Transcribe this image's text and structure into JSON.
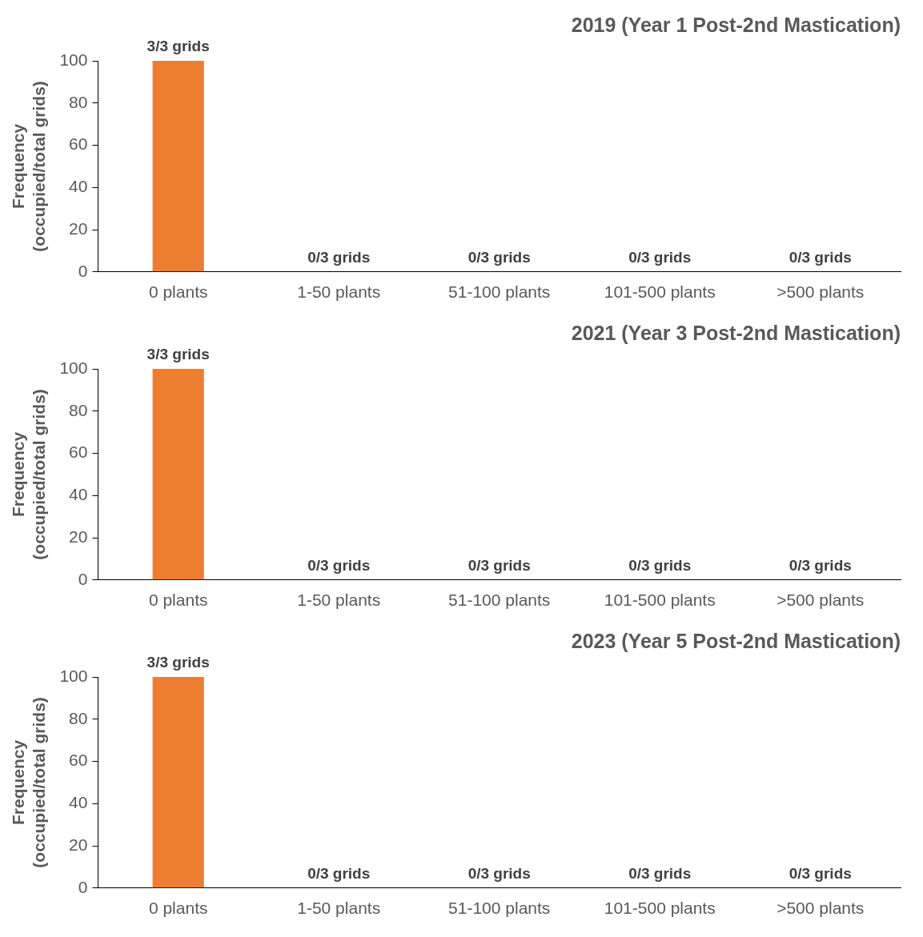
{
  "chart_data": [
    {
      "type": "bar",
      "title": "2019 (Year 1 Post-2nd Mastication)",
      "ylabel": "Frequency\n(occupied/total grids)",
      "categories": [
        "0 plants",
        "1-50 plants",
        "51-100 plants",
        "101-500 plants",
        ">500 plants"
      ],
      "values": [
        100,
        0,
        0,
        0,
        0
      ],
      "color": "#ed7d31",
      "value_labels": [
        "3/3 grids",
        "0/3 grids",
        "0/3 grids",
        "0/3 grids",
        "0/3 grids"
      ],
      "ylim": [
        0,
        100
      ],
      "yticks": [
        0,
        20,
        40,
        60,
        80,
        100
      ],
      "grid": false,
      "legend": false
    },
    {
      "type": "bar",
      "title": "2021 (Year 3 Post-2nd Mastication)",
      "ylabel": "Frequency\n(occupied/total grids)",
      "categories": [
        "0 plants",
        "1-50 plants",
        "51-100 plants",
        "101-500 plants",
        ">500 plants"
      ],
      "values": [
        100,
        0,
        0,
        0,
        0
      ],
      "color": "#ed7d31",
      "value_labels": [
        "3/3 grids",
        "0/3 grids",
        "0/3 grids",
        "0/3 grids",
        "0/3 grids"
      ],
      "ylim": [
        0,
        100
      ],
      "yticks": [
        0,
        20,
        40,
        60,
        80,
        100
      ],
      "grid": false,
      "legend": false
    },
    {
      "type": "bar",
      "title": "2023 (Year 5 Post-2nd Mastication)",
      "ylabel": "Frequency\n(occupied/total grids)",
      "categories": [
        "0 plants",
        "1-50 plants",
        "51-100 plants",
        "101-500 plants",
        ">500 plants"
      ],
      "values": [
        100,
        0,
        0,
        0,
        0
      ],
      "color": "#ed7d31",
      "value_labels": [
        "3/3 grids",
        "0/3 grids",
        "0/3 grids",
        "0/3 grids",
        "0/3 grids"
      ],
      "ylim": [
        0,
        100
      ],
      "yticks": [
        0,
        20,
        40,
        60,
        80,
        100
      ],
      "grid": false,
      "legend": false
    }
  ]
}
